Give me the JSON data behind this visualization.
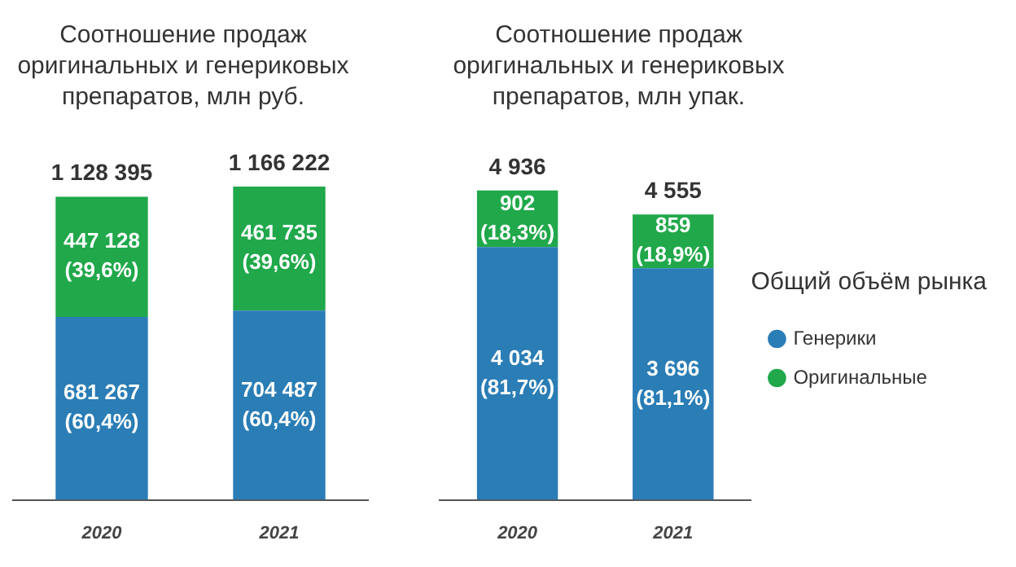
{
  "chart_data": [
    {
      "type": "bar",
      "title": "Соотношение продаж оригинальных и генериковых препаратов, млн руб.",
      "categories": [
        "2020",
        "2021"
      ],
      "stacked": true,
      "tick_labels": "x",
      "legend": false,
      "series": [
        {
          "color": "#2a7db5",
          "values": [
            681267,
            704487
          ],
          "value_labels": [
            "681 267\n(60,4%)",
            "704 487\n(60,4%)"
          ]
        },
        {
          "color": "#20a84a",
          "values": [
            447128,
            461735
          ],
          "value_labels": [
            "447 128\n(39,6%)",
            "461 735\n(39,6%)"
          ]
        }
      ],
      "totals": [
        "1 128 395",
        "1 166 222"
      ]
    },
    {
      "type": "bar",
      "title": "Соотношение продаж оригинальных и генериковых препаратов, млн упак.",
      "categories": [
        "2020",
        "2021"
      ],
      "stacked": true,
      "tick_labels": "x",
      "legend": "right",
      "legend_title": "Общий объём рынка",
      "series": [
        {
          "name": "Генерики",
          "color": "#2a7db5",
          "values": [
            4034,
            3696
          ],
          "value_labels": [
            "4 034\n(81,7%)",
            "3 696\n(81,1%)"
          ]
        },
        {
          "name": "Оригинальные",
          "color": "#20a84a",
          "values": [
            902,
            859
          ],
          "value_labels": [
            "902\n(18,3%)",
            "859\n(18,9%)"
          ]
        }
      ],
      "totals": [
        "4 936",
        "4 555"
      ]
    }
  ]
}
